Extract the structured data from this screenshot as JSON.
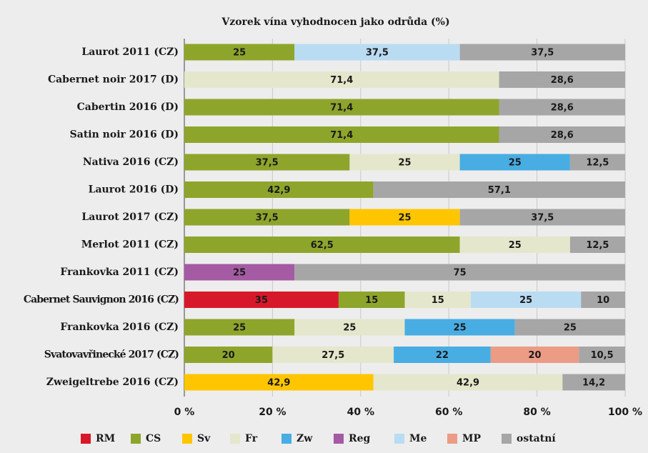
{
  "chart_data": {
    "type": "stacked-bar-horizontal",
    "title": "Vzorek vína vyhodnocen jako odrůda (%)",
    "categories": [
      "Laurot 2011 (CZ)",
      "Cabernet noir 2017 (D)",
      "Cabertin 2016 (D)",
      "Satin noir 2016 (D)",
      "Nativa 2016 (CZ)",
      "Laurot 2016 (D)",
      "Laurot 2017 (CZ)",
      "Merlot 2011 (CZ)",
      "Frankovka 2011 (CZ)",
      "Cabernet Sauvignon 2016 (CZ)",
      "Frankovka 2016 (CZ)",
      "Svatovavřinecké 2017 (CZ)",
      "Zweigeltrebe 2016 (CZ)"
    ],
    "series": [
      {
        "name": "RM",
        "color": "#d7182a",
        "values": [
          null,
          null,
          null,
          null,
          null,
          null,
          null,
          null,
          null,
          35,
          null,
          null,
          null
        ],
        "value_labels": [
          null,
          null,
          null,
          null,
          null,
          null,
          null,
          null,
          null,
          "35",
          null,
          null,
          null
        ]
      },
      {
        "name": "CS",
        "color": "#8ea52b",
        "values": [
          25,
          null,
          71.4,
          71.4,
          37.5,
          42.9,
          37.5,
          62.5,
          null,
          15,
          25,
          20,
          null
        ],
        "value_labels": [
          "25",
          null,
          "71,4",
          "71,4",
          "37,5",
          "42,9",
          "37,5",
          "62,5",
          null,
          "15",
          "25",
          "20",
          null
        ]
      },
      {
        "name": "Sv",
        "color": "#ffc600",
        "values": [
          null,
          null,
          null,
          null,
          null,
          null,
          25,
          null,
          null,
          null,
          null,
          null,
          42.9
        ],
        "value_labels": [
          null,
          null,
          null,
          null,
          null,
          null,
          "25",
          null,
          null,
          null,
          null,
          null,
          "42,9"
        ]
      },
      {
        "name": "Fr",
        "color": "#e5e7cc",
        "values": [
          null,
          71.4,
          null,
          null,
          25,
          null,
          null,
          25,
          null,
          15,
          25,
          27.5,
          42.9
        ],
        "value_labels": [
          null,
          "71,4",
          null,
          null,
          "25",
          null,
          null,
          "25",
          null,
          "15",
          "25",
          "27,5",
          "42,9"
        ]
      },
      {
        "name": "Zw",
        "color": "#48ade3",
        "values": [
          null,
          null,
          null,
          null,
          25,
          null,
          null,
          null,
          null,
          null,
          25,
          22,
          null
        ],
        "value_labels": [
          null,
          null,
          null,
          null,
          "25",
          null,
          null,
          null,
          null,
          null,
          "25",
          "22",
          null
        ]
      },
      {
        "name": "Reg",
        "color": "#a45ba3",
        "values": [
          null,
          null,
          null,
          null,
          null,
          null,
          null,
          null,
          25,
          null,
          null,
          null,
          null
        ],
        "value_labels": [
          null,
          null,
          null,
          null,
          null,
          null,
          null,
          null,
          "25",
          null,
          null,
          null,
          null
        ]
      },
      {
        "name": "Me",
        "color": "#badcf3",
        "values": [
          37.5,
          null,
          null,
          null,
          null,
          null,
          null,
          null,
          null,
          25,
          null,
          null,
          null
        ],
        "value_labels": [
          "37,5",
          null,
          null,
          null,
          null,
          null,
          null,
          null,
          null,
          "25",
          null,
          null,
          null
        ]
      },
      {
        "name": "MP",
        "color": "#ec9b85",
        "values": [
          null,
          null,
          null,
          null,
          null,
          null,
          null,
          null,
          null,
          null,
          null,
          20,
          null
        ],
        "value_labels": [
          null,
          null,
          null,
          null,
          null,
          null,
          null,
          null,
          null,
          null,
          null,
          "20",
          null
        ]
      },
      {
        "name": "ostatní",
        "color": "#a6a6a6",
        "values": [
          37.5,
          28.6,
          28.6,
          28.6,
          12.5,
          57.1,
          37.5,
          12.5,
          75,
          10,
          25,
          10.5,
          14.2
        ],
        "value_labels": [
          "37,5",
          "28,6",
          "28,6",
          "28,6",
          "12,5",
          "57,1",
          "37,5",
          "12,5",
          "75",
          "10",
          "25",
          "10,5",
          "14,2"
        ]
      }
    ],
    "xlim": [
      0,
      100
    ],
    "xticks": [
      {
        "value": 0,
        "label": "0 %"
      },
      {
        "value": 20,
        "label": "20 %"
      },
      {
        "value": 40,
        "label": "40 %"
      },
      {
        "value": 60,
        "label": "60 %"
      },
      {
        "value": 80,
        "label": "80 %"
      },
      {
        "value": 100,
        "label": "100 %"
      }
    ],
    "grid": true,
    "legend": "bottom"
  }
}
